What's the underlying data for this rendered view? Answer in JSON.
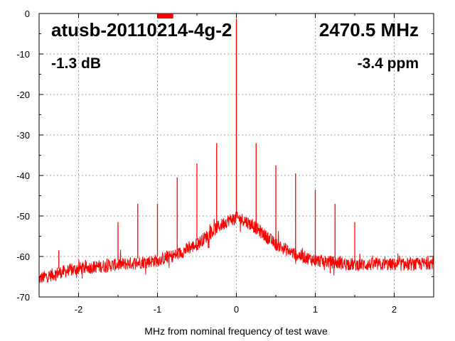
{
  "chart_data": {
    "type": "line",
    "title": "",
    "xlabel": "MHz from nominal frequency of test wave",
    "ylabel": "",
    "xlim": [
      -2.5,
      2.5
    ],
    "ylim": [
      -70,
      0
    ],
    "x_ticks": [
      -2,
      -1,
      0,
      1,
      2
    ],
    "y_ticks": [
      0,
      -10,
      -20,
      -30,
      -40,
      -50,
      -60,
      -70
    ],
    "x_tick_labels": [
      "-2",
      "-1",
      "0",
      "1",
      "2"
    ],
    "y_tick_labels": [
      "0",
      "-10",
      "-20",
      "-30",
      "-40",
      "-50",
      "-60",
      "-70"
    ],
    "grid": true,
    "color": "#ff0000",
    "annotations": {
      "device": "atusb-20110214-4g-2",
      "frequency": "2470.5 MHz",
      "level": "-1.3 dB",
      "offset": "-3.4 ppm"
    },
    "series": [
      {
        "values_description_omitted": false,
        "x": [
          -2.5,
          -2.25,
          -2.0,
          -1.75,
          -1.5,
          -1.25,
          -1.0,
          -0.75,
          -0.5,
          -0.25,
          -0.1,
          0.0,
          0.1,
          0.25,
          0.5,
          0.75,
          1.0,
          1.25,
          1.5,
          1.75,
          2.0,
          2.25,
          2.5
        ],
        "y": [
          -65.5,
          -64,
          -63,
          -62.5,
          -62,
          -61.5,
          -61,
          -59.5,
          -57,
          -53,
          -51,
          -50.5,
          -51,
          -53,
          -57,
          -59.5,
          -61,
          -61.5,
          -62,
          -62,
          -62,
          -62,
          -61.5
        ]
      }
    ],
    "spurs": [
      {
        "x": -2.25,
        "y": -58.5
      },
      {
        "x": -1.5,
        "y": -51.5
      },
      {
        "x": -1.25,
        "y": -47
      },
      {
        "x": -1.0,
        "y": -47
      },
      {
        "x": -0.75,
        "y": -40.5
      },
      {
        "x": -0.5,
        "y": -37
      },
      {
        "x": -0.25,
        "y": -32
      },
      {
        "x": 0.0,
        "y": -1.3
      },
      {
        "x": 0.25,
        "y": -32
      },
      {
        "x": 0.5,
        "y": -37.5
      },
      {
        "x": 0.75,
        "y": -39.5
      },
      {
        "x": 1.0,
        "y": -43.5
      },
      {
        "x": 1.25,
        "y": -47
      },
      {
        "x": 1.5,
        "y": -51.5
      }
    ],
    "marker": {
      "x_start": -1.0,
      "x_end": -0.8,
      "y": 0
    }
  }
}
